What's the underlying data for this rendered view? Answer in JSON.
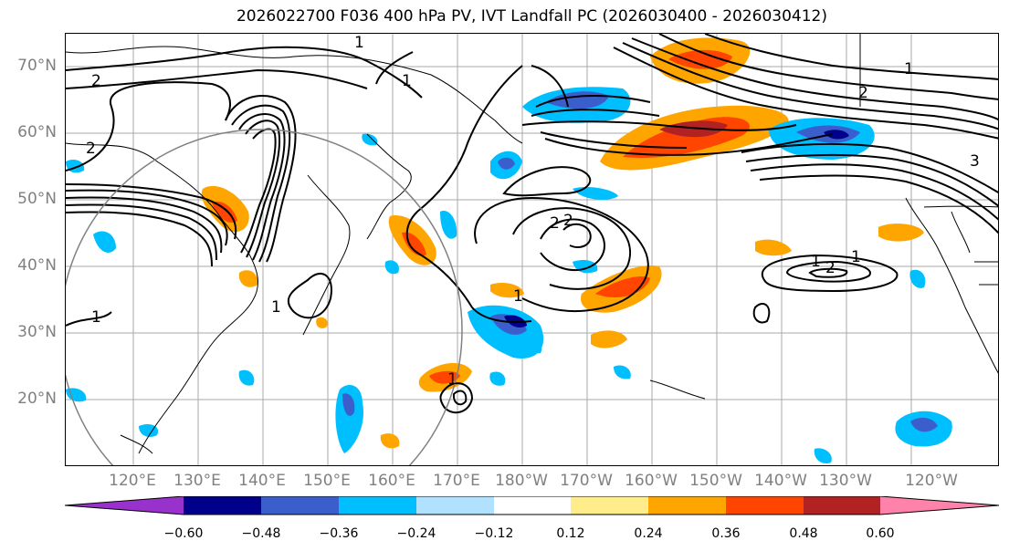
{
  "title": "2026022700 F036 400 hPa PV, IVT Landfall PC (2026030400 - 2026030412)",
  "lat_labels": [
    "70°N",
    "60°N",
    "50°N",
    "40°N",
    "30°N",
    "20°N"
  ],
  "lon_labels": [
    "120°E",
    "130°E",
    "140°E",
    "150°E",
    "160°E",
    "170°E",
    "180°W",
    "170°W",
    "160°W",
    "150°W",
    "140°W",
    "130°W",
    "120°W"
  ],
  "contour_labels": [
    "1",
    "2",
    "2",
    "1",
    "1",
    "1",
    "2",
    "2",
    "1",
    "1",
    "2",
    "3",
    "1",
    "2",
    "1",
    "1"
  ],
  "colorbar": {
    "ticks": [
      "−0.60",
      "−0.48",
      "−0.36",
      "−0.24",
      "−0.12",
      "0.12",
      "0.24",
      "0.36",
      "0.48",
      "0.60"
    ],
    "colors": [
      "#9932cc",
      "#00008b",
      "#3a5fcd",
      "#00bfff",
      "#b0e2ff",
      "#ffffff",
      "#ffec8b",
      "#ffa500",
      "#ff4500",
      "#b22222",
      "#ff82ab"
    ]
  }
}
